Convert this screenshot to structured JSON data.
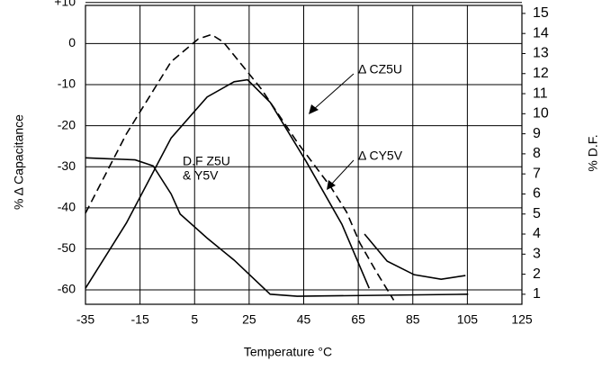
{
  "chart_data": {
    "type": "line",
    "x_label": "Temperature °C",
    "y_label": "% Δ Capacitance",
    "y2_label": "% D.F.",
    "annotations": [
      "Δ CZ5U",
      "Δ CY5V",
      "D.F Z5U",
      "& Y5V"
    ],
    "xlim": [
      -35,
      125
    ],
    "xticks": [
      -35,
      -15,
      5,
      25,
      45,
      65,
      85,
      105,
      125
    ],
    "ylim": [
      -63.5,
      9.3
    ],
    "yticks": [
      {
        "value": 10,
        "label": "+10"
      },
      0,
      -10,
      -20,
      -30,
      -40,
      -50,
      -60
    ],
    "y2lim": [
      0.5,
      15.4
    ],
    "y2ticks": [
      1,
      2,
      3,
      4,
      5,
      6,
      7,
      8,
      9,
      10,
      11,
      12,
      13,
      14,
      15
    ],
    "grid": true,
    "series": [
      {
        "color": "#000000",
        "style": "dashed",
        "x": [
          -35,
          -20,
          -3.6,
          6.3,
          11.2,
          15.5,
          29.4,
          42.6,
          55,
          60.7,
          65.6,
          72,
          78
        ],
        "values": [
          -41.3,
          -22,
          -4.4,
          1.1,
          2.2,
          0.4,
          -11,
          -24,
          -35,
          -41,
          -48.6,
          -56,
          -62.5
        ]
      },
      {
        "color": "#000000",
        "style": "solid",
        "x": [
          -35,
          -20,
          -3.6,
          9.6,
          19.5,
          24.4,
          32.7,
          45.9,
          59,
          69
        ],
        "values": [
          -59.6,
          -43.7,
          -23,
          -13,
          -9.3,
          -8.8,
          -14.3,
          -28.7,
          -44,
          -59.6
        ]
      },
      {
        "color": "#000000",
        "style": "solid",
        "x": [
          67.3,
          75.6,
          85.5,
          95.4,
          104.3
        ],
        "values": [
          -46.4,
          -53,
          -56.3,
          -57.4,
          -56.5
        ]
      },
      {
        "color": "#000000",
        "style": "solid",
        "axis": "y2",
        "x": [
          -35,
          -16.8,
          -10.2,
          -3.6,
          -0.3,
          9.6,
          19.5,
          32.7,
          42.6,
          105.3
        ],
        "values": [
          7.8,
          7.7,
          7.4,
          6.0,
          5.0,
          3.8,
          2.7,
          1.0,
          0.9,
          1.0
        ]
      }
    ]
  }
}
